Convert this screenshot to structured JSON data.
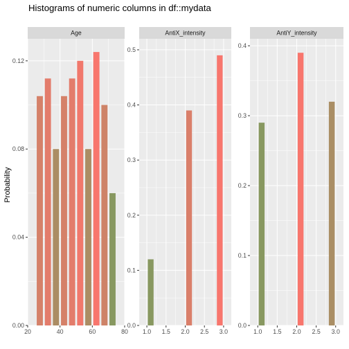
{
  "chart_data": {
    "type": "bar",
    "title": "Histograms of numeric columns in df::mydata",
    "ylabel": "Probability",
    "xlabel": "",
    "grid": true,
    "legend": "none",
    "colors": {
      "panel_bg": "#ebebeb",
      "strip_bg": "#d9d9d9",
      "grid": "#ffffff",
      "low": "#63a35c",
      "high": "#f8766d"
    },
    "panels": [
      {
        "strip": "Age",
        "xlim": [
          20,
          80
        ],
        "xticks": [
          20,
          40,
          60,
          80
        ],
        "xtick_labels": [
          "20",
          "40",
          "60",
          "80"
        ],
        "ylim": [
          0,
          0.13
        ],
        "yticks": [
          0.0,
          0.04,
          0.08,
          0.12
        ],
        "ytick_labels": [
          "0.00",
          "0.04",
          "0.08",
          "0.12"
        ],
        "bar_width": 3.8,
        "bars": [
          {
            "x": 27.5,
            "value": 0.104
          },
          {
            "x": 32.5,
            "value": 0.112
          },
          {
            "x": 37.5,
            "value": 0.08
          },
          {
            "x": 42.5,
            "value": 0.104
          },
          {
            "x": 47.5,
            "value": 0.112
          },
          {
            "x": 52.5,
            "value": 0.12
          },
          {
            "x": 57.5,
            "value": 0.08
          },
          {
            "x": 62.5,
            "value": 0.124
          },
          {
            "x": 67.5,
            "value": 0.1
          },
          {
            "x": 72.5,
            "value": 0.06
          }
        ]
      },
      {
        "strip": "AntiX_intensity",
        "xlim": [
          0.8,
          3.2
        ],
        "xticks": [
          1.0,
          1.5,
          2.0,
          2.5,
          3.0
        ],
        "xtick_labels": [
          "1.0",
          "1.5",
          "2.0",
          "2.5",
          "3.0"
        ],
        "ylim": [
          0,
          0.52
        ],
        "yticks": [
          0.0,
          0.1,
          0.2,
          0.3,
          0.4,
          0.5
        ],
        "ytick_labels": [
          "0.0",
          "0.1",
          "0.2",
          "0.3",
          "0.4",
          "0.5"
        ],
        "bar_width": 0.15,
        "bars": [
          {
            "x": 1.1,
            "value": 0.12
          },
          {
            "x": 2.1,
            "value": 0.39
          },
          {
            "x": 2.9,
            "value": 0.49
          }
        ]
      },
      {
        "strip": "AntiY_intensity",
        "xlim": [
          0.8,
          3.2
        ],
        "xticks": [
          1.0,
          1.5,
          2.0,
          2.5,
          3.0
        ],
        "xtick_labels": [
          "1.0",
          "1.5",
          "2.0",
          "2.5",
          "3.0"
        ],
        "ylim": [
          0,
          0.41
        ],
        "yticks": [
          0.0,
          0.1,
          0.2,
          0.3,
          0.4
        ],
        "ytick_labels": [
          "0.0",
          "0.1",
          "0.2",
          "0.3",
          "0.4"
        ],
        "bar_width": 0.15,
        "bars": [
          {
            "x": 1.1,
            "value": 0.29
          },
          {
            "x": 2.1,
            "value": 0.39
          },
          {
            "x": 2.9,
            "value": 0.32
          }
        ]
      }
    ]
  }
}
